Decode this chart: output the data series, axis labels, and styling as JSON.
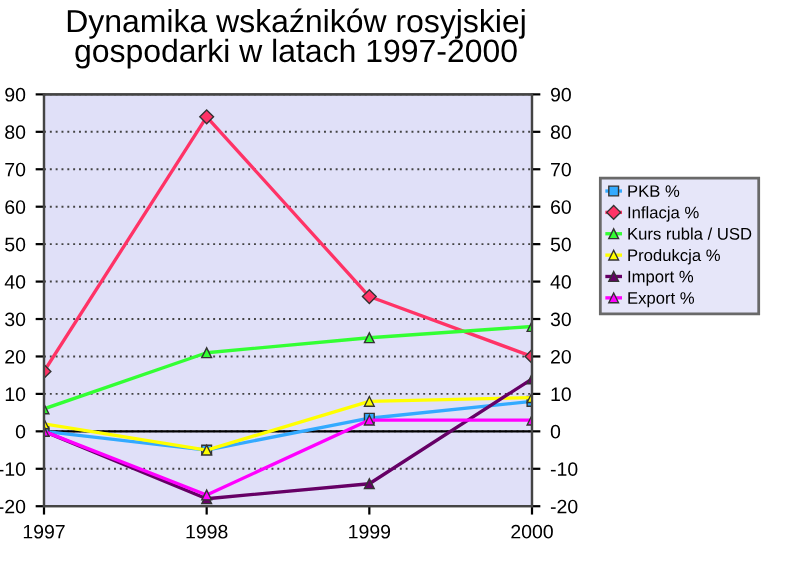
{
  "chart_data": {
    "type": "line",
    "title": "Dynamika wskaźników rosyjskiej\ngospodarki w latach 1997-2000",
    "categories": [
      "1997",
      "1998",
      "1999",
      "2000"
    ],
    "series": [
      {
        "name": "PKB %",
        "color": "#33aaff",
        "marker": "square",
        "values": [
          0,
          -5,
          3.5,
          8
        ]
      },
      {
        "name": "Inflacja %",
        "color": "#ff3366",
        "marker": "diamond",
        "values": [
          16,
          84,
          36,
          20
        ]
      },
      {
        "name": "Kurs rubla / USD",
        "color": "#33ff33",
        "marker": "triangle",
        "values": [
          6,
          21,
          25,
          28
        ]
      },
      {
        "name": "Produkcja %",
        "color": "#ffff00",
        "marker": "triangle",
        "values": [
          2,
          -5,
          8,
          9
        ]
      },
      {
        "name": "Import %",
        "color": "#660066",
        "marker": "triangle",
        "values": [
          0,
          -18,
          -14,
          14
        ]
      },
      {
        "name": "Export %",
        "color": "#ff00ff",
        "marker": "triangle",
        "values": [
          0,
          -17,
          3,
          3
        ]
      }
    ],
    "ylim": [
      -20,
      90
    ],
    "yticks": [
      -20,
      -10,
      0,
      10,
      20,
      30,
      40,
      50,
      60,
      70,
      80,
      90
    ],
    "y2lim": [
      -20,
      90
    ],
    "y2ticks": [
      -20,
      -10,
      0,
      10,
      20,
      30,
      40,
      50,
      60,
      70,
      80,
      90
    ],
    "ref_lines": [
      {
        "axis": "y",
        "value": 0,
        "color": "#000000"
      }
    ],
    "grid": "y",
    "legend": "right",
    "line_style": "solid"
  }
}
